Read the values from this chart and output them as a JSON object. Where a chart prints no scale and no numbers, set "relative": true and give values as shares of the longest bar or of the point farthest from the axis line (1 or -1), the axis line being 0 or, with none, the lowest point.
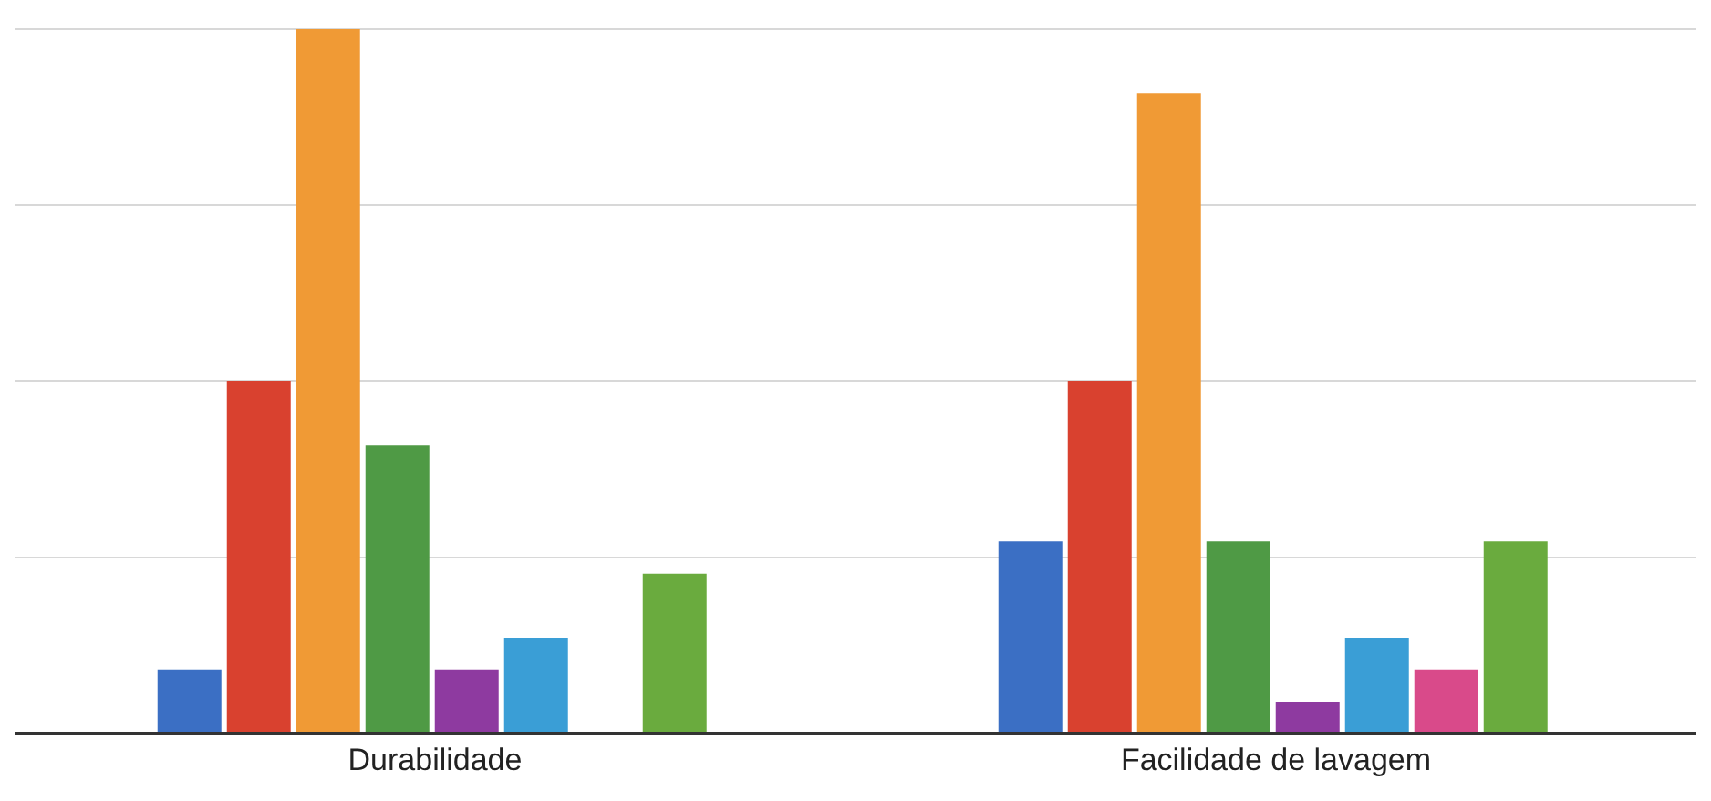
{
  "chart_data": {
    "type": "bar",
    "relative": true,
    "grid": "y",
    "categories": [
      "Durabilidade",
      "Facilidade de lavagem"
    ],
    "series": [
      {
        "color": "#3b6fc4",
        "values": [
          0.091,
          0.273
        ]
      },
      {
        "color": "#d9412f",
        "values": [
          0.5,
          0.5
        ]
      },
      {
        "color": "#f09a35",
        "values": [
          1,
          0.909
        ]
      },
      {
        "color": "#4f9a45",
        "values": [
          0.409,
          0.273
        ]
      },
      {
        "color": "#8e3aa0",
        "values": [
          0.091,
          0.045
        ]
      },
      {
        "color": "#3a9ed6",
        "values": [
          0.136,
          0.136
        ]
      },
      {
        "color": "#d94a8a",
        "values": [
          0,
          0.091
        ]
      },
      {
        "color": "#6aab3e",
        "values": [
          0.227,
          0.273
        ]
      }
    ]
  }
}
